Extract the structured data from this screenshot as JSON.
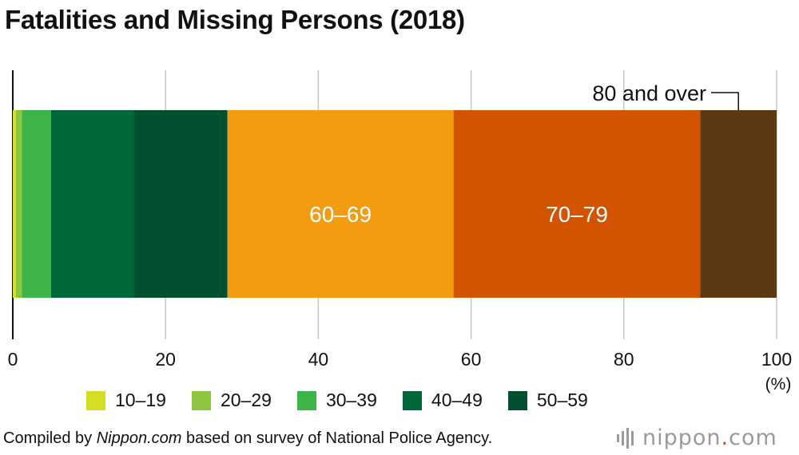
{
  "title": "Fatalities and Missing Persons (2018)",
  "chart_data": {
    "type": "bar",
    "orientation": "horizontal-stacked",
    "title": "Fatalities and Missing Persons (2018)",
    "xlabel": "",
    "unit_label": "(%)",
    "xlim": [
      0,
      100
    ],
    "ticks": [
      0,
      20,
      40,
      60,
      80,
      100
    ],
    "tick_labels": [
      "0",
      "20",
      "40",
      "60",
      "80",
      "100"
    ],
    "grid": true,
    "series": [
      {
        "name": "10–19",
        "value": 0.4,
        "color": "#d4df24"
      },
      {
        "name": "20–29",
        "value": 0.8,
        "color": "#8dc63f"
      },
      {
        "name": "30–39",
        "value": 3.8,
        "color": "#3bb54a"
      },
      {
        "name": "40–49",
        "value": 10.8,
        "color": "#006838"
      },
      {
        "name": "50–59",
        "value": 12.3,
        "color": "#005030"
      },
      {
        "name": "60–69",
        "value": 29.6,
        "color": "#f39c12"
      },
      {
        "name": "70–79",
        "value": 32.3,
        "color": "#d35400"
      },
      {
        "name": "80 and over",
        "value": 10.0,
        "color": "#5c3a11"
      }
    ],
    "inside_labels": [
      "60–69",
      "70–79"
    ],
    "callout_label": "80 and over"
  },
  "legend": [
    {
      "label": "10–19",
      "color": "#d4df24"
    },
    {
      "label": "20–29",
      "color": "#8dc63f"
    },
    {
      "label": "30–39",
      "color": "#3bb54a"
    },
    {
      "label": "40–49",
      "color": "#006838"
    },
    {
      "label": "50–59",
      "color": "#005030"
    }
  ],
  "footer": {
    "prefix": "Compiled by ",
    "source": "Nippon.com",
    "suffix": " based on survey of National Police Agency."
  },
  "logo": {
    "name": "nippon",
    "dot": ".",
    "tld": "com"
  }
}
